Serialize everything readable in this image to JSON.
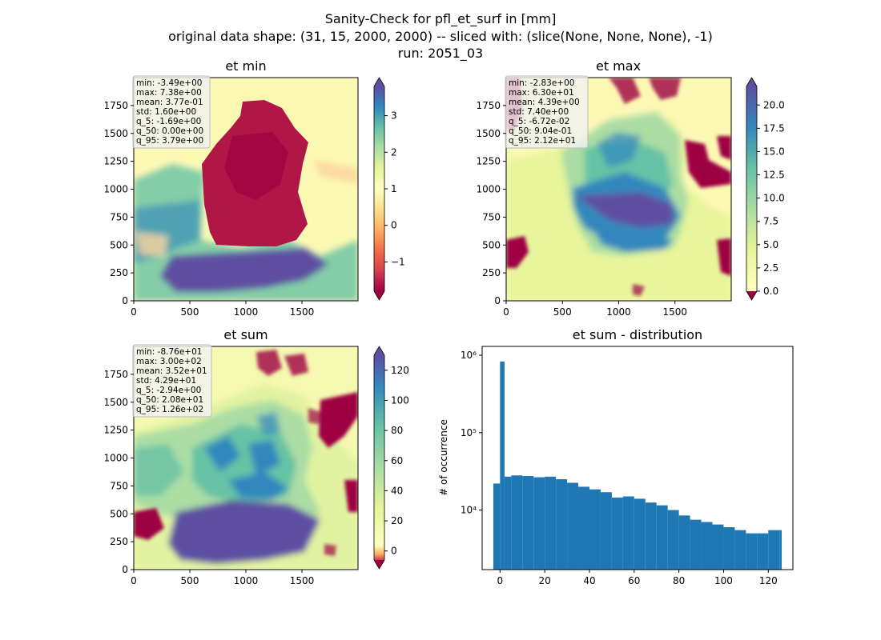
{
  "figure": {
    "suptitle_line1": "Sanity-Check for pfl_et_surf in [mm]",
    "suptitle_line2": "original data shape: (31, 15, 2000, 2000) -- sliced with: (slice(None, None, None), -1)",
    "suptitle_line3": "run: 2051_03"
  },
  "colors": {
    "hist_bar": "#1f77b4",
    "colormap": "Spectral",
    "stat_box_bg": "#f2f2f2"
  },
  "chart_data": [
    {
      "id": "et-min",
      "type": "heatmap",
      "title": "et min",
      "xlim": [
        0,
        2000
      ],
      "ylim": [
        0,
        2000
      ],
      "x_ticks": [
        0,
        500,
        1000,
        1500
      ],
      "y_ticks": [
        0,
        250,
        500,
        750,
        1000,
        1250,
        1500,
        1750
      ],
      "colorbar": {
        "min": -1.8,
        "max": 3.8,
        "ticks": [
          -1,
          0,
          1,
          2,
          3
        ],
        "extend": "both"
      },
      "stats": [
        "min: -3.49e+00",
        "max: 7.38e+00",
        "mean: 3.77e-01",
        "std: 1.60e+00",
        "q_5: -1.69e+00",
        "q_50: 0.00e+00",
        "q_95: 3.79e+00"
      ]
    },
    {
      "id": "et-max",
      "type": "heatmap",
      "title": "et max",
      "xlim": [
        0,
        2000
      ],
      "ylim": [
        0,
        2000
      ],
      "x_ticks": [
        0,
        500,
        1000,
        1500
      ],
      "y_ticks": [
        0,
        250,
        500,
        750,
        1000,
        1250,
        1500,
        1750
      ],
      "colorbar": {
        "min": 0,
        "max": 22,
        "ticks": [
          0.0,
          2.5,
          5.0,
          7.5,
          10.0,
          12.5,
          15.0,
          17.5,
          20.0
        ],
        "extend": "both"
      },
      "stats": [
        "min: -2.83e+00",
        "max: 6.30e+01",
        "mean: 4.39e+00",
        "std: 7.40e+00",
        "q_5: -6.72e-02",
        "q_50: 9.04e-01",
        "q_95: 2.12e+01"
      ]
    },
    {
      "id": "et-sum",
      "type": "heatmap",
      "title": "et sum",
      "xlim": [
        0,
        2000
      ],
      "ylim": [
        0,
        2000
      ],
      "x_ticks": [
        0,
        500,
        1000,
        1500
      ],
      "y_ticks": [
        0,
        250,
        500,
        750,
        1000,
        1250,
        1500,
        1750
      ],
      "colorbar": {
        "min": -6,
        "max": 130,
        "ticks": [
          0,
          20,
          40,
          60,
          80,
          100,
          120
        ],
        "extend": "both"
      },
      "stats": [
        "min: -8.76e+01",
        "max: 3.00e+02",
        "mean: 3.52e+01",
        "std: 4.29e+01",
        "q_5: -2.94e+00",
        "q_50: 2.08e+01",
        "q_95: 1.26e+02"
      ]
    },
    {
      "id": "et-sum-distribution",
      "type": "bar",
      "title": "et sum - distribution",
      "ylabel": "# of occurrence",
      "xlabel": "",
      "yscale": "log",
      "xlim": [
        -8,
        131
      ],
      "ylim": [
        1700,
        1300000
      ],
      "x_ticks": [
        0,
        20,
        40,
        60,
        80,
        100,
        120
      ],
      "y_ticks": [
        {
          "value": 10000,
          "label": "10⁴"
        },
        {
          "value": 100000,
          "label": "10⁵"
        },
        {
          "value": 1000000,
          "label": "10⁶"
        }
      ],
      "bins": {
        "x": [
          -3,
          0,
          2,
          5,
          10,
          15,
          20,
          25,
          30,
          35,
          40,
          45,
          50,
          55,
          60,
          65,
          70,
          75,
          80,
          85,
          90,
          95,
          100,
          105,
          110,
          115,
          120,
          125
        ],
        "counts": [
          22000,
          830000,
          27000,
          28000,
          27500,
          26500,
          27000,
          25000,
          22500,
          20000,
          18500,
          17000,
          14500,
          15000,
          14000,
          12500,
          11500,
          10000,
          8500,
          7500,
          7000,
          6500,
          6000,
          5500,
          5000,
          5000,
          5500,
          5500
        ]
      }
    }
  ]
}
